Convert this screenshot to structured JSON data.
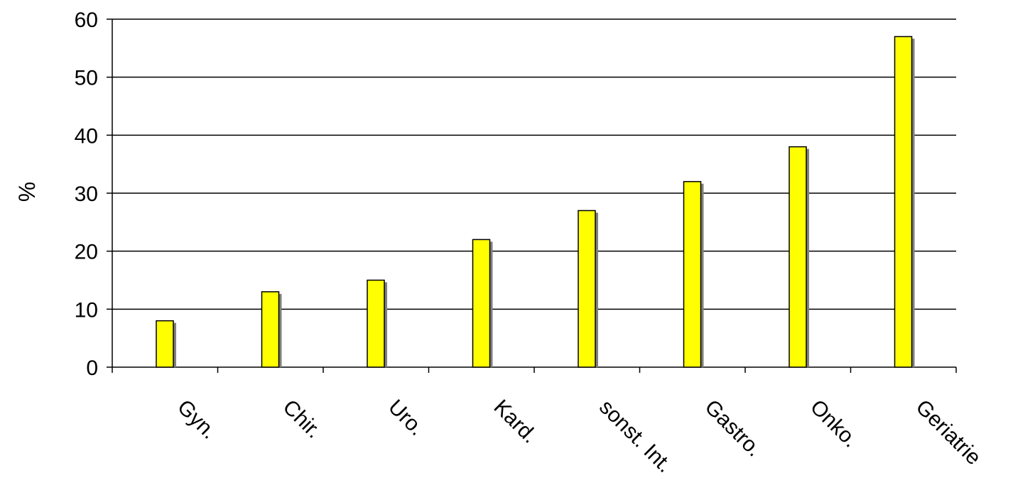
{
  "chart_data": {
    "type": "bar",
    "categories": [
      "Gyn.",
      "Chir.",
      "Uro.",
      "Kard.",
      "sonst. Int.",
      "Gastro.",
      "Onko.",
      "Geriatrie"
    ],
    "values": [
      8,
      13,
      15,
      22,
      27,
      32,
      38,
      57
    ],
    "title": "",
    "xlabel": "",
    "ylabel": "%",
    "ylim": [
      0,
      60
    ],
    "yticks": [
      0,
      10,
      20,
      30,
      40,
      50,
      60
    ],
    "grid": "horizontal",
    "legend": "none",
    "colors": {
      "bar_fill": "#ffff00",
      "bar_stroke": "#000000",
      "bar_shadow": "#808080",
      "grid": "#000000",
      "axis": "#000000"
    }
  }
}
